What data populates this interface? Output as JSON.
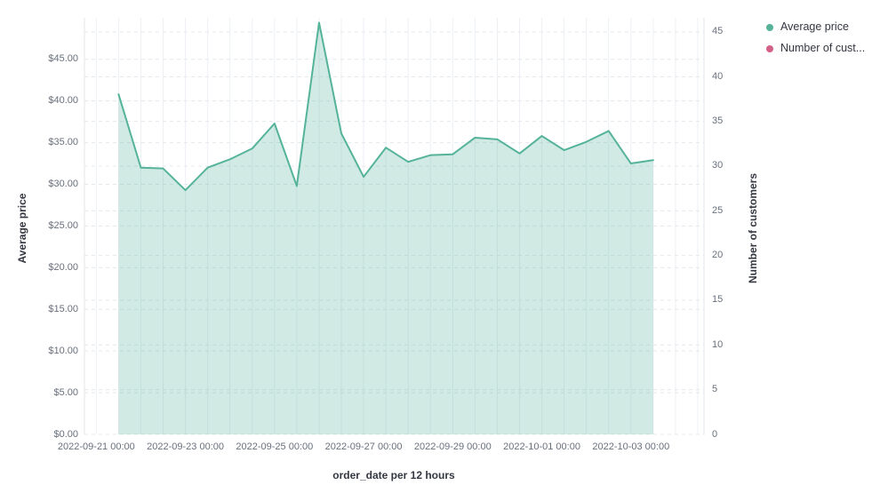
{
  "chart_data": {
    "type": "area",
    "title": "",
    "xlabel": "order_date per 12 hours",
    "x": [
      "2022-09-21 12:00",
      "2022-09-22 00:00",
      "2022-09-22 12:00",
      "2022-09-23 00:00",
      "2022-09-23 12:00",
      "2022-09-24 00:00",
      "2022-09-24 12:00",
      "2022-09-25 00:00",
      "2022-09-25 12:00",
      "2022-09-26 00:00",
      "2022-09-26 12:00",
      "2022-09-27 00:00",
      "2022-09-27 12:00",
      "2022-09-28 00:00",
      "2022-09-28 12:00",
      "2022-09-29 00:00",
      "2022-09-29 12:00",
      "2022-09-30 00:00",
      "2022-09-30 12:00",
      "2022-10-01 00:00",
      "2022-10-01 12:00",
      "2022-10-02 00:00",
      "2022-10-02 12:00",
      "2022-10-03 00:00",
      "2022-10-03 12:00"
    ],
    "series": [
      {
        "name": "Average price",
        "axis": "left",
        "color": "#54b399",
        "fill_opacity": 0.27,
        "values": [
          40.8,
          32.0,
          31.9,
          29.3,
          32.0,
          33.0,
          34.3,
          37.3,
          29.8,
          49.4,
          36.1,
          30.9,
          34.4,
          32.7,
          33.5,
          33.6,
          35.6,
          35.4,
          33.7,
          35.8,
          34.1,
          35.1,
          36.4,
          32.5,
          32.9
        ]
      },
      {
        "name": "Number of cust...",
        "axis": "right",
        "color": "#d36086",
        "values": []
      }
    ],
    "x_axis": {
      "title": "order_date per 12 hours",
      "tick_labels": [
        "2022-09-21 00:00",
        "2022-09-23 00:00",
        "2022-09-25 00:00",
        "2022-09-27 00:00",
        "2022-09-29 00:00",
        "2022-10-01 00:00",
        "2022-10-03 00:00"
      ],
      "interval": "12 hours"
    },
    "left_axis": {
      "title": "Average price",
      "tick_values": [
        0,
        5,
        10,
        15,
        20,
        25,
        30,
        35,
        40,
        45
      ],
      "tick_labels": [
        "$0.00",
        "$5.00",
        "$10.00",
        "$15.00",
        "$20.00",
        "$25.00",
        "$30.00",
        "$35.00",
        "$40.00",
        "$45.00"
      ],
      "range": [
        0,
        45
      ]
    },
    "right_axis": {
      "title": "Number of customers",
      "tick_values": [
        0,
        5,
        10,
        15,
        20,
        25,
        30,
        35,
        40,
        45
      ],
      "tick_labels": [
        "0",
        "5",
        "10",
        "15",
        "20",
        "25",
        "30",
        "35",
        "40",
        "45"
      ],
      "range": [
        0,
        45
      ]
    },
    "legend": {
      "position": "top-right",
      "items": [
        {
          "label": "Average price",
          "color": "#54b399"
        },
        {
          "label": "Number of cust...",
          "color": "#d36086"
        }
      ]
    },
    "grid": {
      "horizontal": "dashed",
      "vertical": "solid",
      "horizontal_color": "#e4e8ee",
      "vertical_color": "#edf0f4",
      "axis_line_color": "#e0e4ea"
    }
  }
}
